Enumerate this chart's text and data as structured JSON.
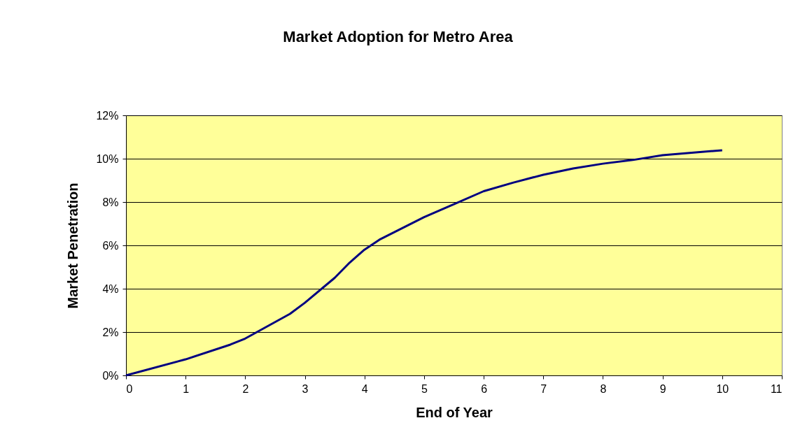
{
  "chart_data": {
    "type": "line",
    "title": "Market Adoption for Metro Area",
    "xlabel": "End of Year",
    "ylabel": "Market Penetration",
    "x": [
      0,
      1,
      1.75,
      2,
      2.75,
      3,
      3.5,
      3.75,
      4,
      4.25,
      5,
      5.5,
      6,
      6.5,
      7,
      7.5,
      8,
      8.5,
      9,
      10
    ],
    "series": [
      {
        "color": "#000080",
        "values": [
          0,
          0.74,
          1.42,
          1.7,
          2.84,
          3.35,
          4.5,
          5.2,
          5.8,
          6.26,
          7.3,
          7.9,
          8.5,
          8.9,
          9.26,
          9.55,
          9.77,
          9.94,
          10.16,
          10.39
        ]
      }
    ],
    "xlim": [
      0,
      11
    ],
    "xticks": [
      0,
      1,
      2,
      3,
      4,
      5,
      6,
      7,
      8,
      9,
      10,
      11
    ],
    "ylim": [
      0,
      12
    ],
    "yticks": [
      {
        "value": 0,
        "label": "0%"
      },
      {
        "value": 2,
        "label": "2%"
      },
      {
        "value": 4,
        "label": "4%"
      },
      {
        "value": 6,
        "label": "6%"
      },
      {
        "value": 8,
        "label": "8%"
      },
      {
        "value": 10,
        "label": "10%"
      },
      {
        "value": 12,
        "label": "12%"
      }
    ],
    "grid": "y",
    "marker": "none",
    "line_style": "solid",
    "legend": false
  }
}
